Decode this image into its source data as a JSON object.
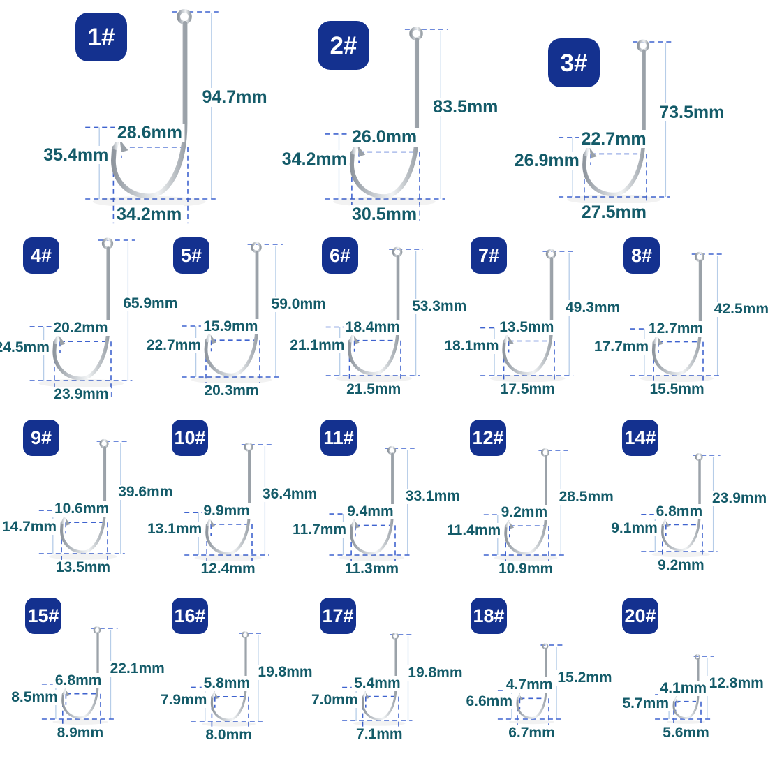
{
  "page": {
    "background": "#ffffff",
    "unit": "mm"
  },
  "style": {
    "badge_bg": "#14318f",
    "badge_text": "#ffffff",
    "label_color": "#145b69",
    "dash_color": "#3f63cf",
    "light_line_color": "#b6cde8",
    "metal_dark": "#8f969e",
    "metal_mid": "#d9dde1",
    "metal_light": "#f2f4f5",
    "metal_edge": "#9aa1a8"
  },
  "hooks": [
    {
      "label": "1#",
      "length": "94.7mm",
      "gap": "28.6mm",
      "height": "35.4mm",
      "width": "34.2mm"
    },
    {
      "label": "2#",
      "length": "83.5mm",
      "gap": "26.0mm",
      "height": "34.2mm",
      "width": "30.5mm"
    },
    {
      "label": "3#",
      "length": "73.5mm",
      "gap": "22.7mm",
      "height": "26.9mm",
      "width": "27.5mm"
    },
    {
      "label": "4#",
      "length": "65.9mm",
      "gap": "20.2mm",
      "height": "24.5mm",
      "width": "23.9mm"
    },
    {
      "label": "5#",
      "length": "59.0mm",
      "gap": "15.9mm",
      "height": "22.7mm",
      "width": "20.3mm"
    },
    {
      "label": "6#",
      "length": "53.3mm",
      "gap": "18.4mm",
      "height": "21.1mm",
      "width": "21.5mm"
    },
    {
      "label": "7#",
      "length": "49.3mm",
      "gap": "13.5mm",
      "height": "18.1mm",
      "width": "17.5mm"
    },
    {
      "label": "8#",
      "length": "42.5mm",
      "gap": "12.7mm",
      "height": "17.7mm",
      "width": "15.5mm"
    },
    {
      "label": "9#",
      "length": "39.6mm",
      "gap": "10.6mm",
      "height": "14.7mm",
      "width": "13.5mm"
    },
    {
      "label": "10#",
      "length": "36.4mm",
      "gap": "9.9mm",
      "height": "13.1mm",
      "width": "12.4mm"
    },
    {
      "label": "11#",
      "length": "33.1mm",
      "gap": "9.4mm",
      "height": "11.7mm",
      "width": "11.3mm"
    },
    {
      "label": "12#",
      "length": "28.5mm",
      "gap": "9.2mm",
      "height": "11.4mm",
      "width": "10.9mm"
    },
    {
      "label": "14#",
      "length": "23.9mm",
      "gap": "6.8mm",
      "height": "9.1mm",
      "width": "9.2mm"
    },
    {
      "label": "15#",
      "length": "22.1mm",
      "gap": "6.8mm",
      "height": "8.5mm",
      "width": "8.9mm"
    },
    {
      "label": "16#",
      "length": "19.8mm",
      "gap": "5.8mm",
      "height": "7.9mm",
      "width": "8.0mm"
    },
    {
      "label": "17#",
      "length": "19.8mm",
      "gap": "5.4mm",
      "height": "7.0mm",
      "width": "7.1mm"
    },
    {
      "label": "18#",
      "length": "15.2mm",
      "gap": "4.7mm",
      "height": "6.6mm",
      "width": "6.7mm"
    },
    {
      "label": "20#",
      "length": "12.8mm",
      "gap": "4.1mm",
      "height": "5.7mm",
      "width": "5.6mm"
    }
  ]
}
